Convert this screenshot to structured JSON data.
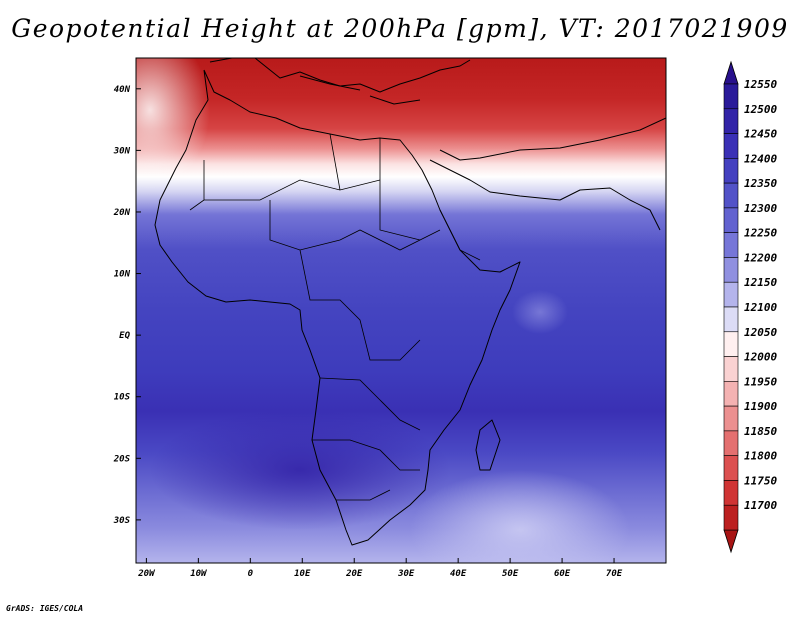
{
  "title": "Geopotential Height at 200hPa [gpm], VT: 2017021909",
  "footer": "GrADS: IGES/COLA",
  "map": {
    "lon_range": [
      -22,
      80
    ],
    "lat_range": [
      -37,
      45
    ],
    "lon_ticks": [
      {
        "value": -20,
        "label": "20W"
      },
      {
        "value": -10,
        "label": "10W"
      },
      {
        "value": 0,
        "label": "0"
      },
      {
        "value": 10,
        "label": "10E"
      },
      {
        "value": 20,
        "label": "20E"
      },
      {
        "value": 30,
        "label": "30E"
      },
      {
        "value": 40,
        "label": "40E"
      },
      {
        "value": 50,
        "label": "50E"
      },
      {
        "value": 60,
        "label": "60E"
      },
      {
        "value": 70,
        "label": "70E"
      }
    ],
    "lat_ticks": [
      {
        "value": 40,
        "label": "40N"
      },
      {
        "value": 30,
        "label": "30N"
      },
      {
        "value": 20,
        "label": "20N"
      },
      {
        "value": 10,
        "label": "10N"
      },
      {
        "value": 0,
        "label": "EQ"
      },
      {
        "value": -10,
        "label": "10S"
      },
      {
        "value": -20,
        "label": "20S"
      },
      {
        "value": -30,
        "label": "30S"
      }
    ]
  },
  "colorbar": {
    "levels": [
      {
        "label": "12550",
        "color": "#2a1a9a"
      },
      {
        "label": "12500",
        "color": "#3224a8"
      },
      {
        "label": "12450",
        "color": "#3a30b6"
      },
      {
        "label": "12400",
        "color": "#4440c0"
      },
      {
        "label": "12350",
        "color": "#5252c8"
      },
      {
        "label": "12300",
        "color": "#6262d0"
      },
      {
        "label": "12250",
        "color": "#7676d8"
      },
      {
        "label": "12200",
        "color": "#9090e0"
      },
      {
        "label": "12150",
        "color": "#b4b4ec"
      },
      {
        "label": "12100",
        "color": "#dcdcf6"
      },
      {
        "label": "12050",
        "color": "#fff0f0"
      },
      {
        "label": "12000",
        "color": "#fad2d2"
      },
      {
        "label": "11950",
        "color": "#f4b2b2"
      },
      {
        "label": "11900",
        "color": "#ec9090"
      },
      {
        "label": "11850",
        "color": "#e47070"
      },
      {
        "label": "11800",
        "color": "#dc5050"
      },
      {
        "label": "11750",
        "color": "#d03434"
      },
      {
        "label": "11700",
        "color": "#bc2020"
      }
    ],
    "top_arrow_color": "#28108c",
    "bottom_arrow_color": "#a81414"
  }
}
